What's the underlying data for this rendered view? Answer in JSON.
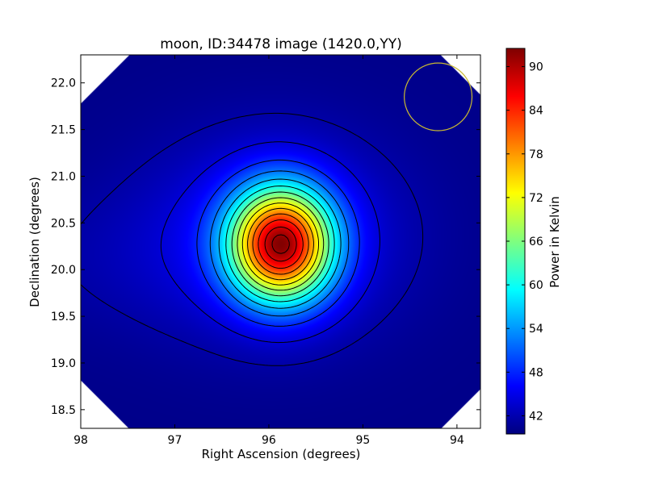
{
  "chart_data": {
    "type": "heatmap",
    "title": "moon, ID:34478 image (1420.0,YY)",
    "xlabel": "Right Ascension (degrees)",
    "ylabel": "Declination (degrees)",
    "xlim": [
      98.0,
      93.75
    ],
    "ylim": [
      18.3,
      22.3
    ],
    "x_ticks": [
      98,
      97,
      96,
      95,
      94
    ],
    "x_tick_labels": [
      "98",
      "97",
      "96",
      "95",
      "94"
    ],
    "y_ticks": [
      18.5,
      19.0,
      19.5,
      20.0,
      20.5,
      21.0,
      21.5,
      22.0
    ],
    "y_tick_labels": [
      "18.5",
      "19.0",
      "19.5",
      "20.0",
      "20.5",
      "21.0",
      "21.5",
      "22.0"
    ],
    "colorbar": {
      "label": "Power in Kelvin",
      "min": 39.5,
      "max": 92.5,
      "ticks": [
        42,
        48,
        54,
        60,
        66,
        72,
        78,
        84,
        90
      ],
      "tick_labels": [
        "42",
        "48",
        "54",
        "60",
        "66",
        "72",
        "78",
        "84",
        "90"
      ],
      "colormap": "jet"
    },
    "source": {
      "ra": 95.87,
      "dec": 20.27,
      "peak": 92,
      "background": 40
    },
    "contour_levels": [
      41.5,
      44,
      48,
      52,
      56,
      60,
      64,
      68,
      72,
      76,
      80,
      84,
      88,
      91
    ],
    "beam_circle": {
      "ra": 94.2,
      "dec": 21.85,
      "radius_deg": 0.36,
      "color": "#c8b832"
    },
    "grid": false
  }
}
